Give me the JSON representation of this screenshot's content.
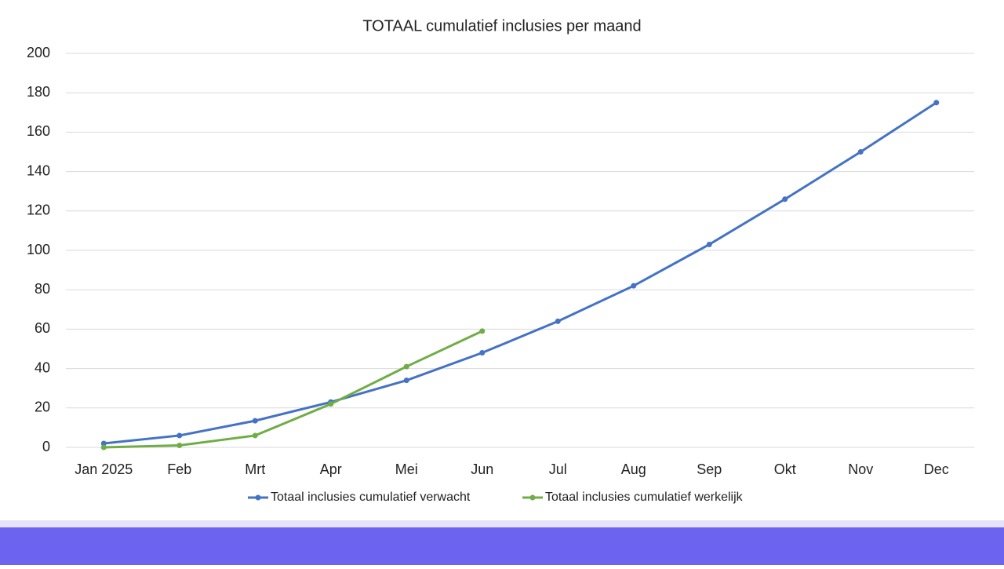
{
  "chart_data": {
    "type": "line",
    "title": "TOTAAL cumulatief inclusies per maand",
    "categories": [
      "Jan 2025",
      "Feb",
      "Mrt",
      "Apr",
      "Mei",
      "Jun",
      "Jul",
      "Aug",
      "Sep",
      "Okt",
      "Nov",
      "Dec"
    ],
    "series": [
      {
        "name": "Totaal inclusies cumulatief verwacht",
        "color": "#4472c4",
        "values": [
          2,
          6,
          13.5,
          23,
          34,
          48,
          64,
          82,
          103,
          126,
          150,
          175
        ]
      },
      {
        "name": "Totaal inclusies cumulatief werkelijk",
        "color": "#70ad47",
        "values": [
          0,
          1,
          6,
          22,
          41,
          59,
          null,
          null,
          null,
          null,
          null,
          null
        ]
      }
    ],
    "ylim": [
      0,
      200
    ],
    "yticks": [
      0,
      20,
      40,
      60,
      80,
      100,
      120,
      140,
      160,
      180,
      200
    ],
    "grid": true,
    "legend": "bottom"
  }
}
